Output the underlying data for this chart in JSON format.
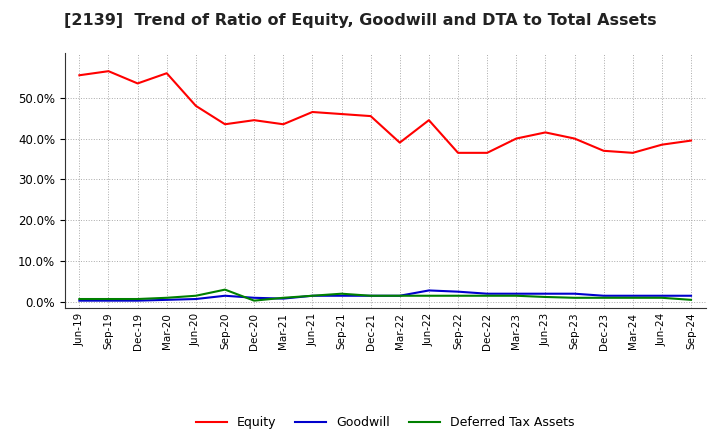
{
  "title": "[2139]  Trend of Ratio of Equity, Goodwill and DTA to Total Assets",
  "x_labels": [
    "Jun-19",
    "Sep-19",
    "Dec-19",
    "Mar-20",
    "Jun-20",
    "Sep-20",
    "Dec-20",
    "Mar-21",
    "Jun-21",
    "Sep-21",
    "Dec-21",
    "Mar-22",
    "Jun-22",
    "Sep-22",
    "Dec-22",
    "Mar-23",
    "Jun-23",
    "Sep-23",
    "Dec-23",
    "Mar-24",
    "Jun-24",
    "Sep-24"
  ],
  "equity": [
    55.5,
    56.5,
    53.5,
    56.0,
    48.0,
    43.5,
    44.5,
    43.5,
    46.5,
    46.0,
    45.5,
    39.0,
    44.5,
    36.5,
    36.5,
    40.0,
    41.5,
    40.0,
    37.0,
    36.5,
    38.5,
    39.5
  ],
  "goodwill": [
    0.3,
    0.3,
    0.3,
    0.5,
    0.7,
    1.5,
    1.0,
    0.8,
    1.5,
    1.5,
    1.5,
    1.5,
    2.8,
    2.5,
    2.0,
    2.0,
    2.0,
    2.0,
    1.5,
    1.5,
    1.5,
    1.5
  ],
  "dta": [
    0.7,
    0.7,
    0.7,
    1.0,
    1.5,
    3.0,
    0.3,
    1.0,
    1.5,
    2.0,
    1.5,
    1.5,
    1.5,
    1.5,
    1.5,
    1.5,
    1.2,
    1.0,
    1.0,
    1.0,
    1.0,
    0.5
  ],
  "equity_color": "#ff0000",
  "goodwill_color": "#0000cc",
  "dta_color": "#008000",
  "ylim_min": -1.5,
  "ylim_max": 61.0,
  "yticks": [
    0.0,
    10.0,
    20.0,
    30.0,
    40.0,
    50.0
  ],
  "background_color": "#ffffff",
  "grid_color": "#aaaaaa",
  "title_fontsize": 11.5,
  "legend_labels": [
    "Equity",
    "Goodwill",
    "Deferred Tax Assets"
  ]
}
